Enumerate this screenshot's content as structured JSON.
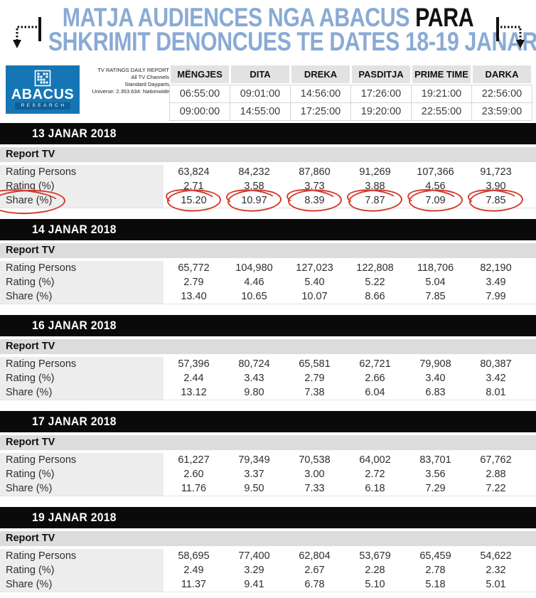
{
  "title": {
    "line1_blue": "MATJA AUDIENCES NGA ABACUS",
    "line1_black": " PARA",
    "line2": "SHKRIMIT DENONCUES TE DATES 18-19 JANAR"
  },
  "colors": {
    "title_blue": "#89aad5",
    "logo_blue": "#1576b5",
    "banner_black": "#0a0a0a",
    "header_cell_gray": "#e2e2e2",
    "channel_row_gray": "#dcdcdc",
    "label_col_gray": "#ededed",
    "circle_red": "#d23a2e"
  },
  "logo": {
    "brand": "ABACUS",
    "sub_brand": "RESEARCH"
  },
  "report_info": [
    "TV RATINGS DAILY REPORT",
    "All TV Channels",
    "Standard Dayparts",
    "Universe: 2.353.634: Nationwide"
  ],
  "dayparts": {
    "columns": [
      "MËNGJES",
      "DITA",
      "DREKA",
      "PASDITJA",
      "PRIME TIME",
      "DARKA"
    ],
    "start_times": [
      "06:55:00",
      "09:01:00",
      "14:56:00",
      "17:26:00",
      "19:21:00",
      "22:56:00"
    ],
    "end_times": [
      "09:00:00",
      "14:55:00",
      "17:25:00",
      "19:20:00",
      "22:55:00",
      "23:59:00"
    ]
  },
  "row_labels": {
    "rating_persons": "Rating Persons",
    "rating_pct": "Rating (%)",
    "share_pct": "Share (%)"
  },
  "sections": [
    {
      "date": "13 JANAR 2018",
      "channel": "Report TV",
      "rating_persons": [
        "63,824",
        "84,232",
        "87,860",
        "91,269",
        "107,366",
        "91,723"
      ],
      "rating_pct": [
        "2.71",
        "3.58",
        "3.73",
        "3.88",
        "4.56",
        "3.90"
      ],
      "share_pct": [
        "15.20",
        "10.97",
        "8.39",
        "7.87",
        "7.09",
        "7.85"
      ],
      "share_circled": true
    },
    {
      "date": "14 JANAR 2018",
      "channel": "Report TV",
      "rating_persons": [
        "65,772",
        "104,980",
        "127,023",
        "122,808",
        "118,706",
        "82,190"
      ],
      "rating_pct": [
        "2.79",
        "4.46",
        "5.40",
        "5.22",
        "5.04",
        "3.49"
      ],
      "share_pct": [
        "13.40",
        "10.65",
        "10.07",
        "8.66",
        "7.85",
        "7.99"
      ],
      "share_circled": false
    },
    {
      "date": "16 JANAR 2018",
      "channel": "Report TV",
      "rating_persons": [
        "57,396",
        "80,724",
        "65,581",
        "62,721",
        "79,908",
        "80,387"
      ],
      "rating_pct": [
        "2.44",
        "3.43",
        "2.79",
        "2.66",
        "3.40",
        "3.42"
      ],
      "share_pct": [
        "13.12",
        "9.80",
        "7.38",
        "6.04",
        "6.83",
        "8.01"
      ],
      "share_circled": false
    },
    {
      "date": "17 JANAR 2018",
      "channel": "Report TV",
      "rating_persons": [
        "61,227",
        "79,349",
        "70,538",
        "64,002",
        "83,701",
        "67,762"
      ],
      "rating_pct": [
        "2.60",
        "3.37",
        "3.00",
        "2.72",
        "3.56",
        "2.88"
      ],
      "share_pct": [
        "11.76",
        "9.50",
        "7.33",
        "6.18",
        "7.29",
        "7.22"
      ],
      "share_circled": false
    },
    {
      "date": "19 JANAR 2018",
      "channel": "Report TV",
      "rating_persons": [
        "58,695",
        "77,400",
        "62,804",
        "53,679",
        "65,459",
        "54,622"
      ],
      "rating_pct": [
        "2.49",
        "3.29",
        "2.67",
        "2.28",
        "2.78",
        "2.32"
      ],
      "share_pct": [
        "11.37",
        "9.41",
        "6.78",
        "5.10",
        "5.18",
        "5.01"
      ],
      "share_circled": false
    }
  ],
  "chart_data": {
    "type": "table",
    "title": "TV RATINGS DAILY REPORT — Report TV (All TV Channels, Standard Dayparts)",
    "columns": [
      "MËNGJES 06:55:00–09:00:00",
      "DITA 09:01:00–14:55:00",
      "DREKA 14:56:00–17:25:00",
      "PASDITJA 17:26:00–19:20:00",
      "PRIME TIME 19:21:00–22:55:00",
      "DARKA 22:56:00–23:59:00"
    ],
    "rows": [
      {
        "date": "13 JANAR 2018",
        "rating_persons": [
          63824,
          84232,
          87860,
          91269,
          107366,
          91723
        ],
        "rating_pct": [
          2.71,
          3.58,
          3.73,
          3.88,
          4.56,
          3.9
        ],
        "share_pct": [
          15.2,
          10.97,
          8.39,
          7.87,
          7.09,
          7.85
        ]
      },
      {
        "date": "14 JANAR 2018",
        "rating_persons": [
          65772,
          104980,
          127023,
          122808,
          118706,
          82190
        ],
        "rating_pct": [
          2.79,
          4.46,
          5.4,
          5.22,
          5.04,
          3.49
        ],
        "share_pct": [
          13.4,
          10.65,
          10.07,
          8.66,
          7.85,
          7.99
        ]
      },
      {
        "date": "16 JANAR 2018",
        "rating_persons": [
          57396,
          80724,
          65581,
          62721,
          79908,
          80387
        ],
        "rating_pct": [
          2.44,
          3.43,
          2.79,
          2.66,
          3.4,
          3.42
        ],
        "share_pct": [
          13.12,
          9.8,
          7.38,
          6.04,
          6.83,
          8.01
        ]
      },
      {
        "date": "17 JANAR 2018",
        "rating_persons": [
          61227,
          79349,
          70538,
          64002,
          83701,
          67762
        ],
        "rating_pct": [
          2.6,
          3.37,
          3.0,
          2.72,
          3.56,
          2.88
        ],
        "share_pct": [
          11.76,
          9.5,
          7.33,
          6.18,
          7.29,
          7.22
        ]
      },
      {
        "date": "19 JANAR 2018",
        "rating_persons": [
          58695,
          77400,
          62804,
          53679,
          65459,
          54622
        ],
        "rating_pct": [
          2.49,
          3.29,
          2.67,
          2.28,
          2.78,
          2.32
        ],
        "share_pct": [
          11.37,
          9.41,
          6.78,
          5.1,
          5.18,
          5.01
        ]
      }
    ]
  }
}
